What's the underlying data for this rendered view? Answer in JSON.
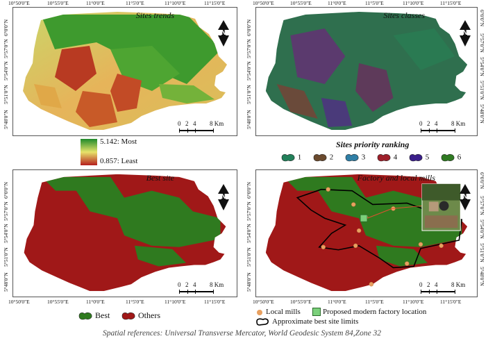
{
  "panels": {
    "trends": {
      "title": "Sites trends"
    },
    "classes": {
      "title": "Sites classes"
    },
    "best": {
      "title": "Best site"
    },
    "factory": {
      "title": "Factory and local mills"
    }
  },
  "x_ticks": [
    "10°50'0\"E",
    "10°55'0\"E",
    "11°0'0\"E",
    "11°5'0\"E",
    "11°10'0\"E",
    "11°15'0\"E"
  ],
  "y_ticks": [
    "6°0'0\"N",
    "5°57'0\"N",
    "5°54'0\"N",
    "5°51'0\"N",
    "5°48'0\"N"
  ],
  "north_label": "N",
  "scale": {
    "t0": "0",
    "t2": "2",
    "t4": "4",
    "t8": "8 Km"
  },
  "gradient_legend": {
    "max_label": "5.142: Most",
    "min_label": "0.857: Least",
    "colors": [
      "#1e8a2a",
      "#e7e36a",
      "#b51e1e"
    ]
  },
  "ranking_legend": {
    "title": "Sites priority ranking",
    "items": [
      {
        "label": "1",
        "color": "#22805a"
      },
      {
        "label": "2",
        "color": "#6b4a2e"
      },
      {
        "label": "3",
        "color": "#2f7fa6"
      },
      {
        "label": "4",
        "color": "#9e1f2a"
      },
      {
        "label": "5",
        "color": "#3a1e8a"
      },
      {
        "label": "6",
        "color": "#2f7a22"
      }
    ]
  },
  "best_legend": {
    "items": [
      {
        "label": "Best",
        "color": "#2f7a1f"
      },
      {
        "label": "Others",
        "color": "#a01818"
      }
    ]
  },
  "factory_legend": {
    "local_mills": "Local mills",
    "proposed": "Proposed modern factory location",
    "limits": "Approximate best site limits",
    "mill_color": "#e8a060"
  },
  "caption": "Spatial references: Universal Transverse Mercator, World Geodesic System 84,Zone 32"
}
